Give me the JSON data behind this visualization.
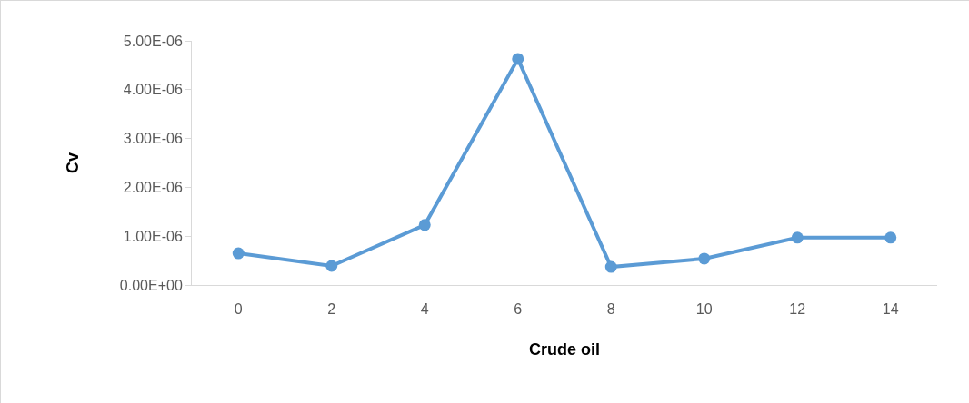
{
  "chart_data": {
    "type": "line",
    "xlabel": "Crude oil",
    "ylabel": "Cv",
    "categories": [
      "0",
      "2",
      "4",
      "6",
      "8",
      "10",
      "12",
      "14"
    ],
    "series": [
      {
        "color": "#5b9bd5",
        "values": [
          6.5e-07,
          3.9e-07,
          1.23e-06,
          4.63e-06,
          3.7e-07,
          5.4e-07,
          9.7e-07,
          9.7e-07
        ]
      }
    ],
    "ylim": [
      0,
      5e-06
    ],
    "yticks": [
      {
        "value": 0,
        "label": "0.00E+00"
      },
      {
        "value": 1e-06,
        "label": "1.00E-06"
      },
      {
        "value": 2e-06,
        "label": "2.00E-06"
      },
      {
        "value": 3e-06,
        "label": "3.00E-06"
      },
      {
        "value": 4e-06,
        "label": "4.00E-06"
      },
      {
        "value": 5e-06,
        "label": "5.00E-06"
      }
    ],
    "grid": false,
    "marker": "circle",
    "line_style": "solid"
  }
}
